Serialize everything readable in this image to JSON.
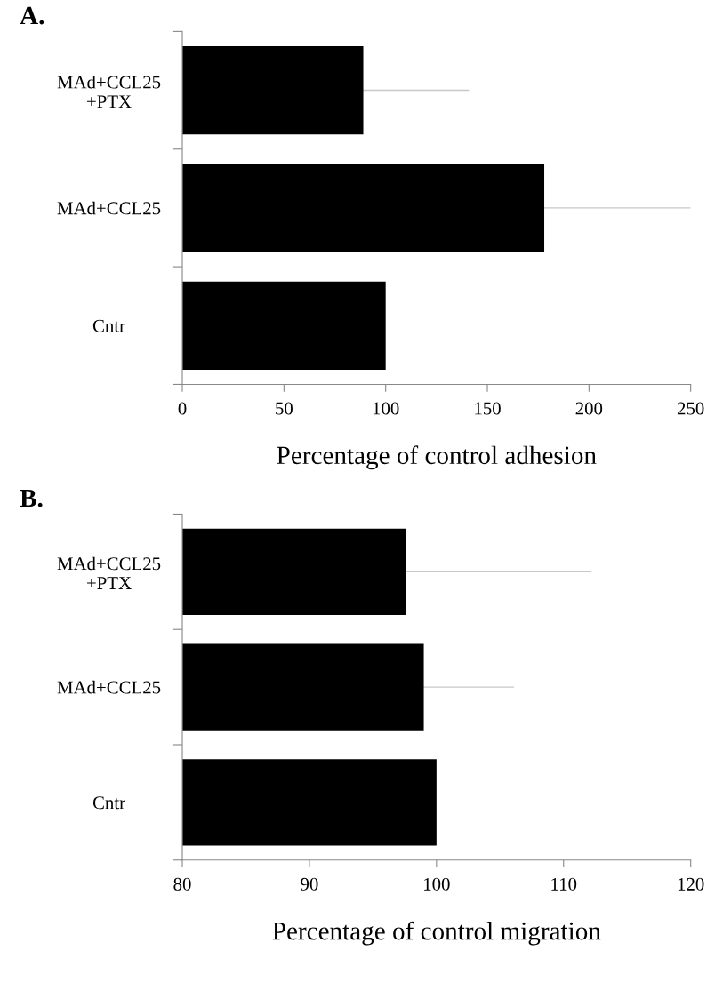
{
  "chart_data": [
    {
      "type": "bar",
      "orientation": "horizontal",
      "title": "A.",
      "xlabel": "Percentage of control adhesion",
      "categories": [
        "MAd+CCL25\n+PTX",
        "MAd+CCL25",
        "Cntr"
      ],
      "values": [
        89,
        178,
        100
      ],
      "errors": [
        52,
        72,
        null
      ],
      "color": "#000000",
      "xlim": [
        0,
        250
      ],
      "xticks": [
        0,
        50,
        100,
        150,
        200,
        250
      ],
      "grid": false,
      "legend": false
    },
    {
      "type": "bar",
      "orientation": "horizontal",
      "title": "B.",
      "xlabel": "Percentage of control migration",
      "categories": [
        "MAd+CCL25\n+PTX",
        "MAd+CCL25",
        "Cntr"
      ],
      "values": [
        97.6,
        99.0,
        100
      ],
      "errors": [
        14.6,
        7.1,
        null
      ],
      "color": "#000000",
      "xlim": [
        80,
        120
      ],
      "xticks": [
        80,
        90,
        100,
        110,
        120
      ],
      "grid": false,
      "legend": false
    }
  ]
}
